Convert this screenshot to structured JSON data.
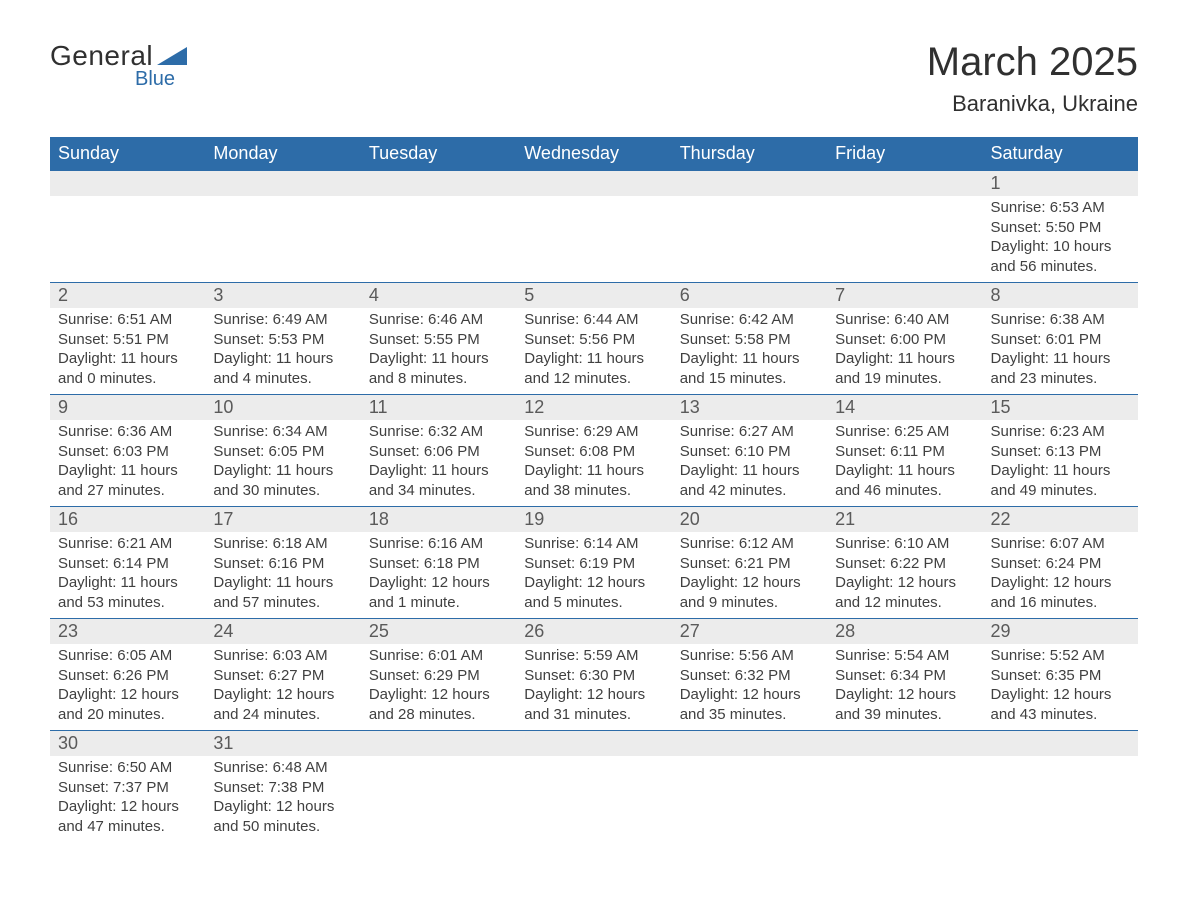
{
  "logo": {
    "main": "General",
    "sub": "Blue",
    "mark_color": "#2d6ca8"
  },
  "title": "March 2025",
  "location": "Baranivka, Ukraine",
  "header_bg": "#2d6ca8",
  "header_fg": "#ffffff",
  "daynum_bg": "#ececec",
  "border_color": "#2d6ca8",
  "text_color": "#404040",
  "body_fontsize": 15,
  "weekdays": [
    "Sunday",
    "Monday",
    "Tuesday",
    "Wednesday",
    "Thursday",
    "Friday",
    "Saturday"
  ],
  "weeks": [
    [
      null,
      null,
      null,
      null,
      null,
      null,
      {
        "n": "1",
        "sr": "6:53 AM",
        "ss": "5:50 PM",
        "dl": "10 hours and 56 minutes."
      }
    ],
    [
      {
        "n": "2",
        "sr": "6:51 AM",
        "ss": "5:51 PM",
        "dl": "11 hours and 0 minutes."
      },
      {
        "n": "3",
        "sr": "6:49 AM",
        "ss": "5:53 PM",
        "dl": "11 hours and 4 minutes."
      },
      {
        "n": "4",
        "sr": "6:46 AM",
        "ss": "5:55 PM",
        "dl": "11 hours and 8 minutes."
      },
      {
        "n": "5",
        "sr": "6:44 AM",
        "ss": "5:56 PM",
        "dl": "11 hours and 12 minutes."
      },
      {
        "n": "6",
        "sr": "6:42 AM",
        "ss": "5:58 PM",
        "dl": "11 hours and 15 minutes."
      },
      {
        "n": "7",
        "sr": "6:40 AM",
        "ss": "6:00 PM",
        "dl": "11 hours and 19 minutes."
      },
      {
        "n": "8",
        "sr": "6:38 AM",
        "ss": "6:01 PM",
        "dl": "11 hours and 23 minutes."
      }
    ],
    [
      {
        "n": "9",
        "sr": "6:36 AM",
        "ss": "6:03 PM",
        "dl": "11 hours and 27 minutes."
      },
      {
        "n": "10",
        "sr": "6:34 AM",
        "ss": "6:05 PM",
        "dl": "11 hours and 30 minutes."
      },
      {
        "n": "11",
        "sr": "6:32 AM",
        "ss": "6:06 PM",
        "dl": "11 hours and 34 minutes."
      },
      {
        "n": "12",
        "sr": "6:29 AM",
        "ss": "6:08 PM",
        "dl": "11 hours and 38 minutes."
      },
      {
        "n": "13",
        "sr": "6:27 AM",
        "ss": "6:10 PM",
        "dl": "11 hours and 42 minutes."
      },
      {
        "n": "14",
        "sr": "6:25 AM",
        "ss": "6:11 PM",
        "dl": "11 hours and 46 minutes."
      },
      {
        "n": "15",
        "sr": "6:23 AM",
        "ss": "6:13 PM",
        "dl": "11 hours and 49 minutes."
      }
    ],
    [
      {
        "n": "16",
        "sr": "6:21 AM",
        "ss": "6:14 PM",
        "dl": "11 hours and 53 minutes."
      },
      {
        "n": "17",
        "sr": "6:18 AM",
        "ss": "6:16 PM",
        "dl": "11 hours and 57 minutes."
      },
      {
        "n": "18",
        "sr": "6:16 AM",
        "ss": "6:18 PM",
        "dl": "12 hours and 1 minute."
      },
      {
        "n": "19",
        "sr": "6:14 AM",
        "ss": "6:19 PM",
        "dl": "12 hours and 5 minutes."
      },
      {
        "n": "20",
        "sr": "6:12 AM",
        "ss": "6:21 PM",
        "dl": "12 hours and 9 minutes."
      },
      {
        "n": "21",
        "sr": "6:10 AM",
        "ss": "6:22 PM",
        "dl": "12 hours and 12 minutes."
      },
      {
        "n": "22",
        "sr": "6:07 AM",
        "ss": "6:24 PM",
        "dl": "12 hours and 16 minutes."
      }
    ],
    [
      {
        "n": "23",
        "sr": "6:05 AM",
        "ss": "6:26 PM",
        "dl": "12 hours and 20 minutes."
      },
      {
        "n": "24",
        "sr": "6:03 AM",
        "ss": "6:27 PM",
        "dl": "12 hours and 24 minutes."
      },
      {
        "n": "25",
        "sr": "6:01 AM",
        "ss": "6:29 PM",
        "dl": "12 hours and 28 minutes."
      },
      {
        "n": "26",
        "sr": "5:59 AM",
        "ss": "6:30 PM",
        "dl": "12 hours and 31 minutes."
      },
      {
        "n": "27",
        "sr": "5:56 AM",
        "ss": "6:32 PM",
        "dl": "12 hours and 35 minutes."
      },
      {
        "n": "28",
        "sr": "5:54 AM",
        "ss": "6:34 PM",
        "dl": "12 hours and 39 minutes."
      },
      {
        "n": "29",
        "sr": "5:52 AM",
        "ss": "6:35 PM",
        "dl": "12 hours and 43 minutes."
      }
    ],
    [
      {
        "n": "30",
        "sr": "6:50 AM",
        "ss": "7:37 PM",
        "dl": "12 hours and 47 minutes."
      },
      {
        "n": "31",
        "sr": "6:48 AM",
        "ss": "7:38 PM",
        "dl": "12 hours and 50 minutes."
      },
      null,
      null,
      null,
      null,
      null
    ]
  ],
  "labels": {
    "sunrise": "Sunrise: ",
    "sunset": "Sunset: ",
    "daylight": "Daylight: "
  }
}
